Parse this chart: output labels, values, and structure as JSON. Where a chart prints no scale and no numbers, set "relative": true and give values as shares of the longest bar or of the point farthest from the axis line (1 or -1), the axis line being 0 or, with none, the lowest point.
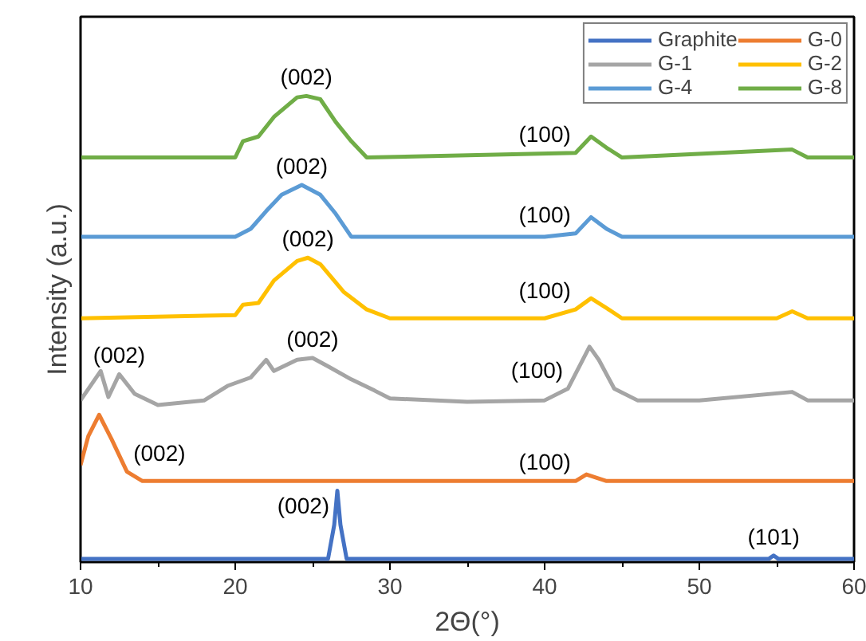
{
  "chart_data": {
    "type": "line",
    "relative": true,
    "xlabel": "2Θ(°)",
    "ylabel": "Intensity (a.u.)",
    "xlim": [
      10,
      60
    ],
    "xticks": [
      10,
      20,
      30,
      40,
      50,
      60
    ],
    "grid": false,
    "legend": "top right",
    "line_style": "solid",
    "series": [
      {
        "name": "Graphite",
        "color": "#4472c4",
        "x": [
          10,
          26.0,
          26.4,
          26.6,
          26.8,
          27.2,
          54.5,
          54.8,
          55.1,
          60
        ],
        "values": [
          0.007,
          0.007,
          0.08,
          0.153,
          0.08,
          0.007,
          0.007,
          0.014,
          0.007,
          0.007
        ]
      },
      {
        "name": "G-0",
        "color": "#ed7d31",
        "x": [
          10,
          10.5,
          11.2,
          12,
          13,
          14,
          42,
          42.7,
          44,
          60
        ],
        "values": [
          0.208,
          0.27,
          0.316,
          0.264,
          0.194,
          0.174,
          0.174,
          0.188,
          0.174,
          0.174
        ]
      },
      {
        "name": "G-1",
        "color": "#a5a5a5",
        "x": [
          10,
          11.3,
          11.8,
          12.5,
          13.5,
          15,
          18,
          19.5,
          21,
          22,
          22.5,
          24,
          25,
          26,
          27.5,
          29,
          30,
          35,
          40,
          41.5,
          42.9,
          43.5,
          44.5,
          46,
          50,
          56,
          57,
          60
        ],
        "values": [
          0.347,
          0.41,
          0.354,
          0.403,
          0.361,
          0.337,
          0.347,
          0.378,
          0.396,
          0.434,
          0.41,
          0.434,
          0.438,
          0.42,
          0.392,
          0.368,
          0.351,
          0.344,
          0.347,
          0.372,
          0.462,
          0.434,
          0.372,
          0.347,
          0.347,
          0.365,
          0.347,
          0.347
        ]
      },
      {
        "name": "G-2",
        "color": "#ffc000",
        "x": [
          10,
          20,
          20.5,
          21.5,
          22.5,
          24,
          24.7,
          25.5,
          27,
          28.5,
          30,
          40,
          42,
          43,
          44,
          45,
          55,
          56,
          57,
          60
        ],
        "values": [
          0.523,
          0.53,
          0.552,
          0.556,
          0.604,
          0.646,
          0.653,
          0.639,
          0.58,
          0.542,
          0.523,
          0.523,
          0.542,
          0.566,
          0.545,
          0.523,
          0.523,
          0.538,
          0.523,
          0.523
        ]
      },
      {
        "name": "G-4",
        "color": "#5b9bd5",
        "x": [
          10,
          20,
          21,
          22,
          23,
          24.3,
          25.5,
          26.5,
          27.5,
          40,
          42,
          43,
          44,
          45,
          60
        ],
        "values": [
          0.698,
          0.698,
          0.715,
          0.753,
          0.788,
          0.809,
          0.788,
          0.747,
          0.698,
          0.698,
          0.705,
          0.74,
          0.715,
          0.698,
          0.698
        ]
      },
      {
        "name": "G-8",
        "color": "#70ad47",
        "x": [
          10,
          20,
          20.5,
          21.5,
          22.5,
          24,
          24.6,
          25.5,
          26.5,
          27.5,
          28.5,
          42,
          43,
          44,
          45,
          56,
          57,
          60
        ],
        "values": [
          0.868,
          0.868,
          0.903,
          0.913,
          0.955,
          0.997,
          1.0,
          0.993,
          0.944,
          0.903,
          0.868,
          0.878,
          0.913,
          0.889,
          0.868,
          0.885,
          0.868,
          0.868
        ]
      }
    ],
    "annotations": [
      {
        "text": "(002)",
        "x": 24.6,
        "y": 1.0
      },
      {
        "text": "(100)",
        "x": 42,
        "y": 0.878
      },
      {
        "text": "(002)",
        "x": 24.3,
        "y": 0.809
      },
      {
        "text": "(100)",
        "x": 42,
        "y": 0.705
      },
      {
        "text": "(002)",
        "x": 24.7,
        "y": 0.653
      },
      {
        "text": "(100)",
        "x": 42,
        "y": 0.542
      },
      {
        "text": "(002)",
        "x": 12.5,
        "y": 0.403
      },
      {
        "text": "(002)",
        "x": 25,
        "y": 0.438
      },
      {
        "text": "(100)",
        "x": 41.5,
        "y": 0.372
      },
      {
        "text": "(002)",
        "x": 13,
        "y": 0.194
      },
      {
        "text": "(100)",
        "x": 42,
        "y": 0.174
      },
      {
        "text": "(002)",
        "x": 26.4,
        "y": 0.08
      },
      {
        "text": "(101)",
        "x": 54.8,
        "y": 0.014
      }
    ]
  }
}
